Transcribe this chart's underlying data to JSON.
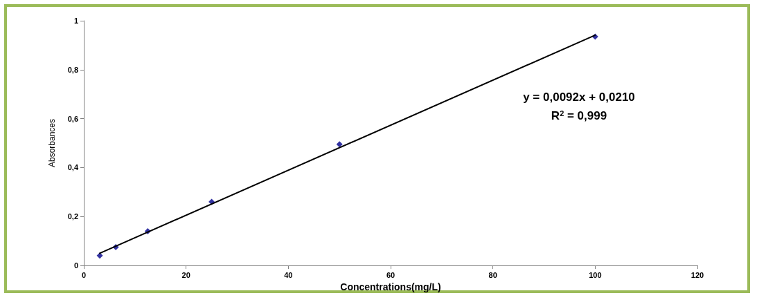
{
  "chart_data": {
    "type": "scatter",
    "xlabel": "Concentrations(mg/L)",
    "ylabel": "Absorbances",
    "annotations": [
      "y = 0,0092x + 0,0210",
      "R$^{2}$ = 0,999"
    ],
    "series": [
      {
        "color": "#00008b",
        "marker": "diamond",
        "x": [
          3.125,
          6.25,
          12.5,
          25,
          50,
          100
        ],
        "values": [
          0.04,
          0.075,
          0.14,
          0.26,
          0.495,
          0.935
        ]
      },
      {
        "type": "line",
        "color": "#000000",
        "marker": "none",
        "line_style": "solid",
        "x": [
          3.125,
          100
        ],
        "values": [
          0.05,
          0.941
        ]
      }
    ],
    "xlim": [
      0,
      120
    ],
    "xticks": [
      0,
      20,
      40,
      60,
      80,
      100,
      120
    ],
    "ylim": [
      0,
      1
    ],
    "yticks": [
      0,
      {
        "value": 0.2,
        "label": "0,2"
      },
      {
        "value": 0.4,
        "label": "0,4"
      },
      {
        "value": 0.6,
        "label": "0,6"
      },
      {
        "value": 0.8,
        "label": "0,8"
      },
      1
    ],
    "grid": false
  }
}
